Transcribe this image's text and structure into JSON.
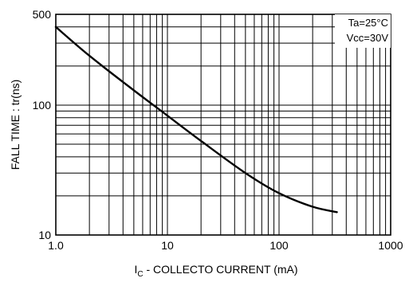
{
  "chart_data": {
    "type": "line",
    "title": "",
    "xlabel": "I_C - COLLECTO   CURRENT  (mA)",
    "xlabel_main": "I",
    "xlabel_sub": "C",
    "xlabel_rest": " - COLLECTO   CURRENT  (mA)",
    "ylabel": "FALL TIME : tr(ns)",
    "xscale": "log",
    "yscale": "log",
    "xlim": [
      1,
      1000
    ],
    "ylim": [
      10,
      500
    ],
    "x_tick_labels": [
      "1.0",
      "10",
      "100",
      "1000"
    ],
    "y_tick_labels": [
      "10",
      "100",
      "500"
    ],
    "grid": true,
    "legend": {
      "placement": "top-right",
      "line1": "Ta=25°C",
      "line2": "Vcc=30V"
    },
    "series": [
      {
        "x": [
          1,
          2,
          5,
          10,
          20,
          50,
          100,
          200,
          330
        ],
        "y": [
          400,
          240,
          130,
          83,
          53,
          30,
          21,
          16.5,
          15
        ]
      }
    ]
  }
}
